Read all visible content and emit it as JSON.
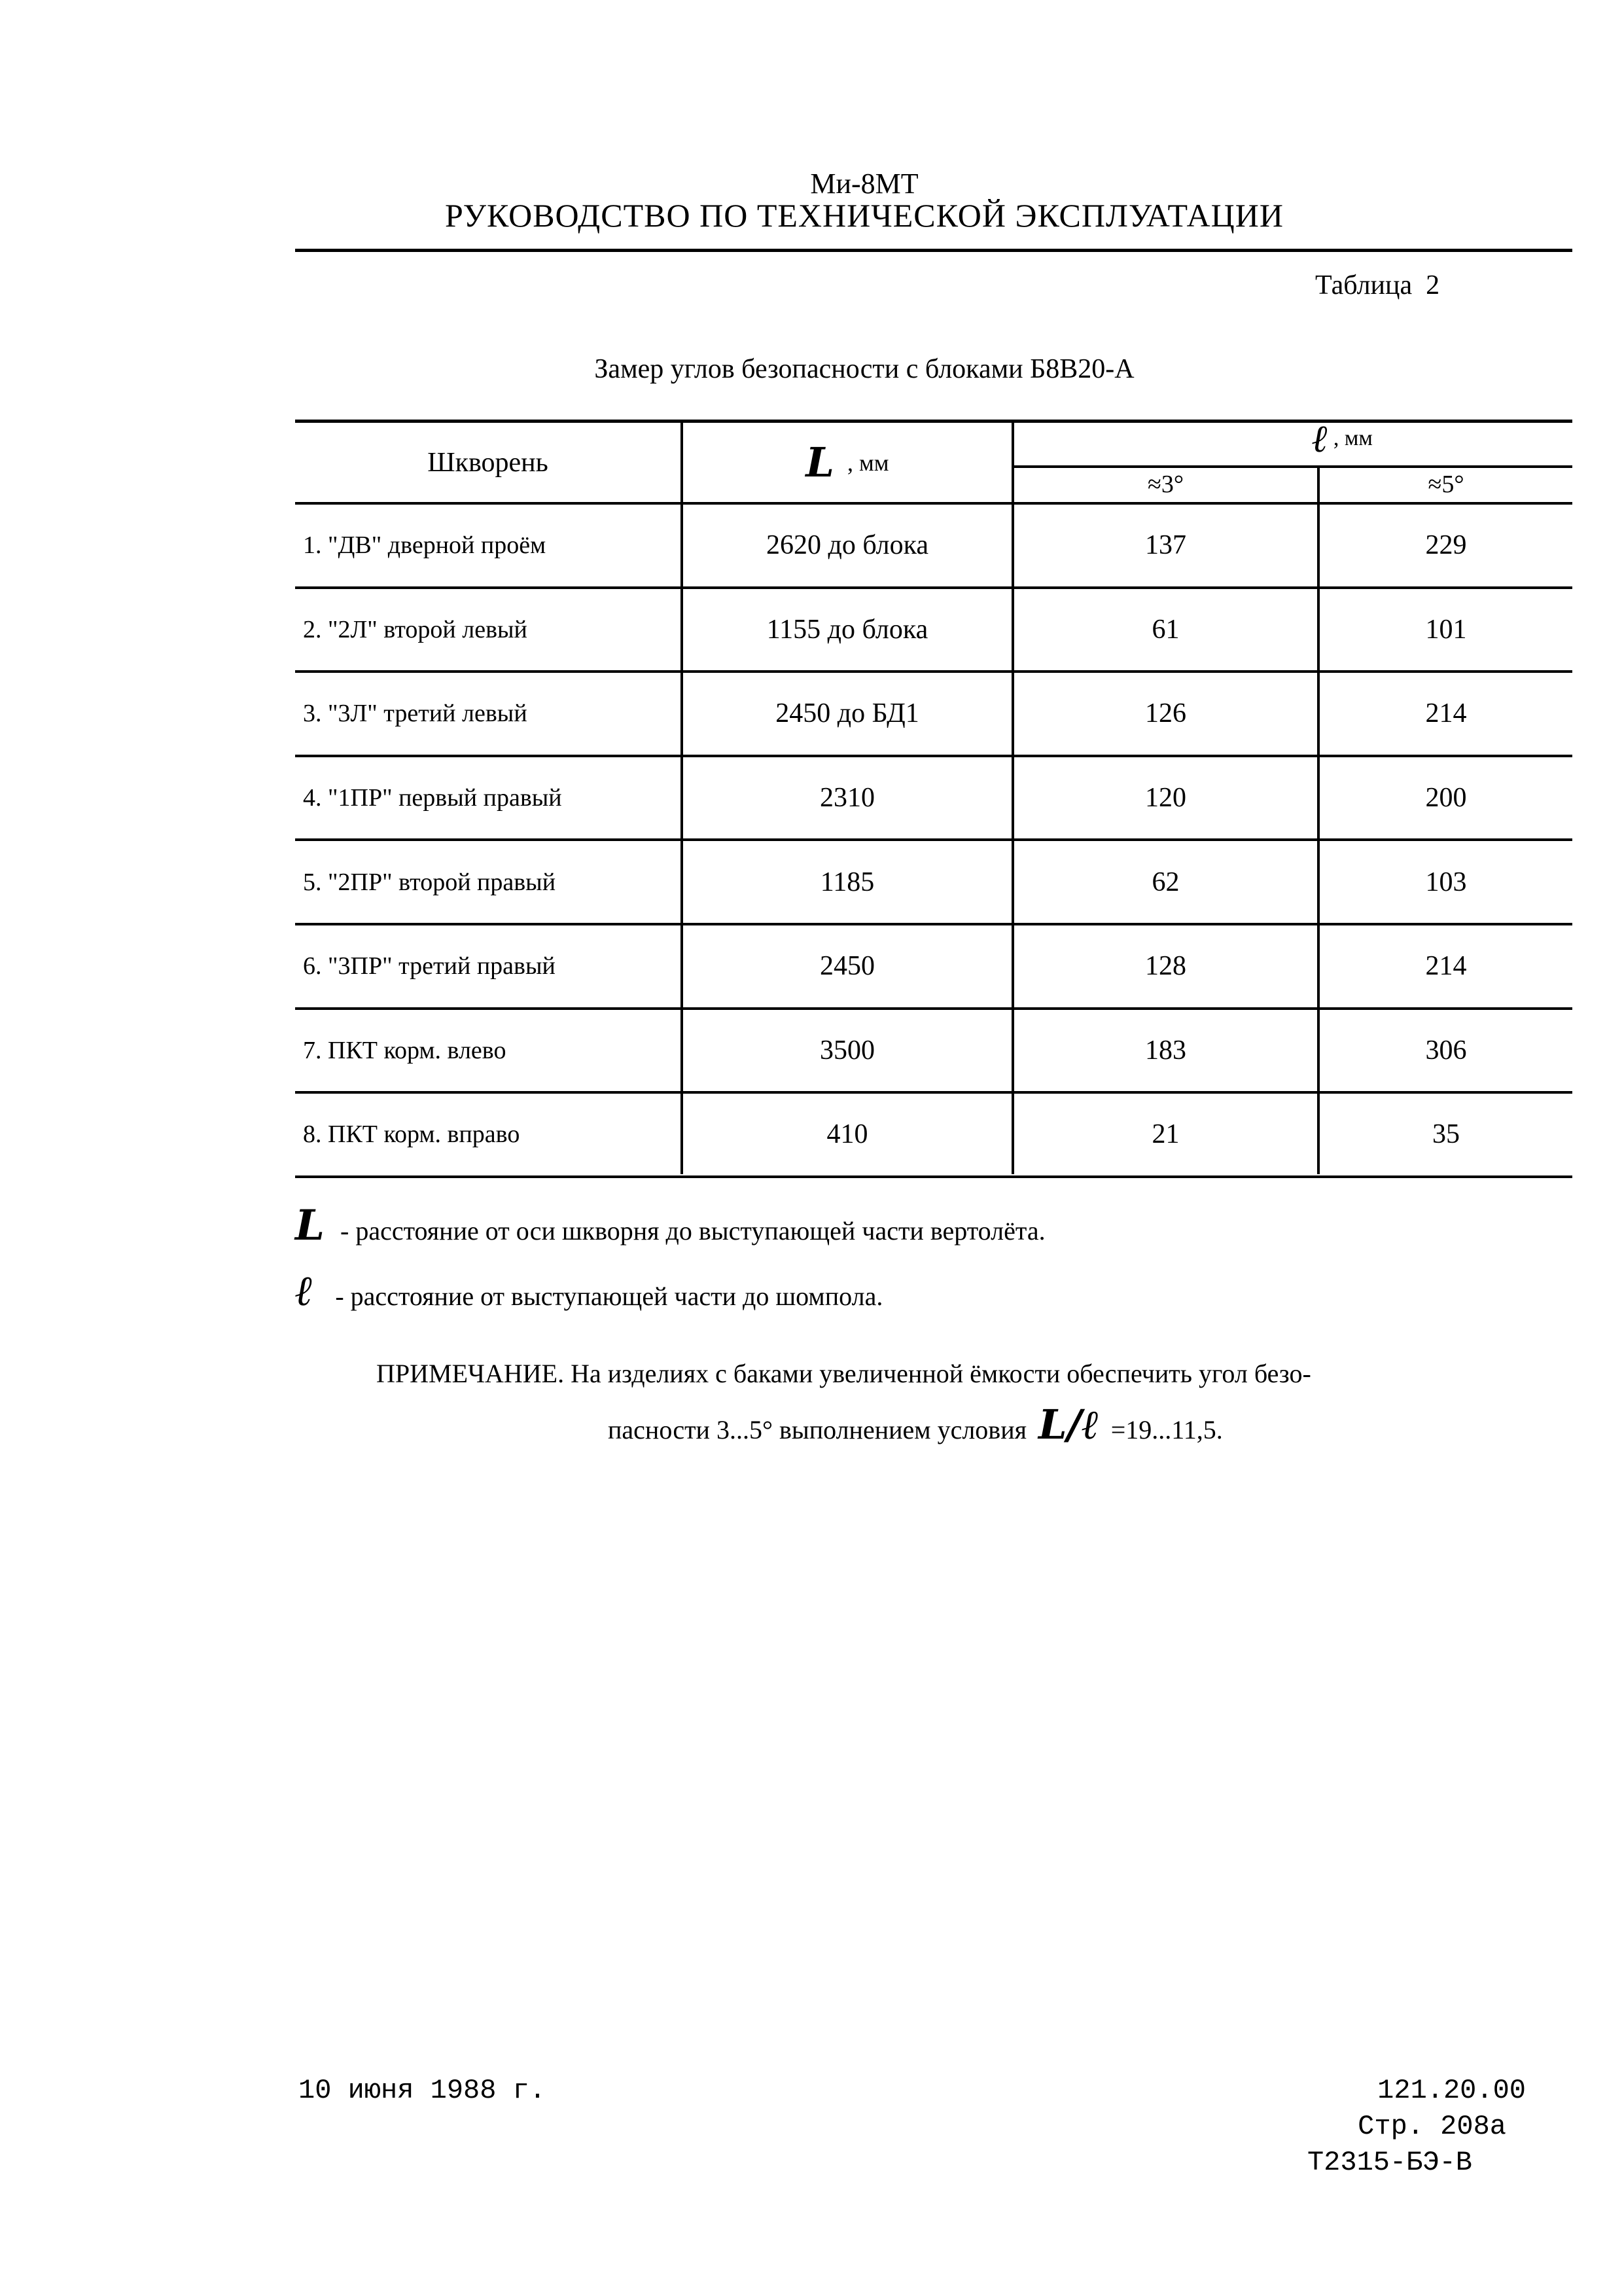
{
  "header": {
    "doc_code": "Ми-8МТ",
    "title": "РУКОВОДСТВО ПО ТЕХНИЧЕСКОЙ ЭКСПЛУАТАЦИИ"
  },
  "table_label": "Таблица  2",
  "caption": "Замер углов безопасности с блоками Б8В20-А",
  "table": {
    "col_pivot": "Шкворень",
    "col_L_symbol": "L",
    "col_L_unit": ", мм",
    "col_l_symbol": "ℓ",
    "col_l_unit": ", мм",
    "sub_3": "≈3°",
    "sub_5": "≈5°",
    "rows": [
      {
        "pivot": "1. \"ДВ\" дверной проём",
        "L": "2620 до блока",
        "l3": "137",
        "l5": "229"
      },
      {
        "pivot": "2. \"2Л\" второй левый",
        "L": "1155 до блока",
        "l3": "61",
        "l5": "101"
      },
      {
        "pivot": "3. \"3Л\" третий левый",
        "L": "2450 до БД1",
        "l3": "126",
        "l5": "214"
      },
      {
        "pivot": "4. \"1ПР\" первый правый",
        "L": "2310",
        "l3": "120",
        "l5": "200"
      },
      {
        "pivot": "5. \"2ПР\" второй правый",
        "L": "1185",
        "l3": "62",
        "l5": "103"
      },
      {
        "pivot": "6. \"3ПР\" третий правый",
        "L": "2450",
        "l3": "128",
        "l5": "214"
      },
      {
        "pivot": "7. ПКТ корм. влево",
        "L": "3500",
        "l3": "183",
        "l5": "306"
      },
      {
        "pivot": "8. ПКТ корм. вправо",
        "L": "410",
        "l3": "21",
        "l5": "35"
      }
    ]
  },
  "legend": [
    {
      "symbol": "L",
      "text": "- расстояние от оси шкворня до выступающей части вертолёта."
    },
    {
      "symbol": "ℓ",
      "text": "- расстояние от выступающей части до шомпола."
    }
  ],
  "note": {
    "line1": "ПРИМЕЧАНИЕ. На изделиях с баками увеличенной ёмкости обеспечить угол безо-",
    "line2_start": "пасности  3...5° выполнением условия",
    "ratio_symbol": "L/ℓ",
    "line2_end": "=19...11,5."
  },
  "footer": {
    "date": "10 июня 1988 г.",
    "section": "121.20.00",
    "page": "Стр. 208а",
    "doc_number": "Т2315-БЭ-В"
  }
}
